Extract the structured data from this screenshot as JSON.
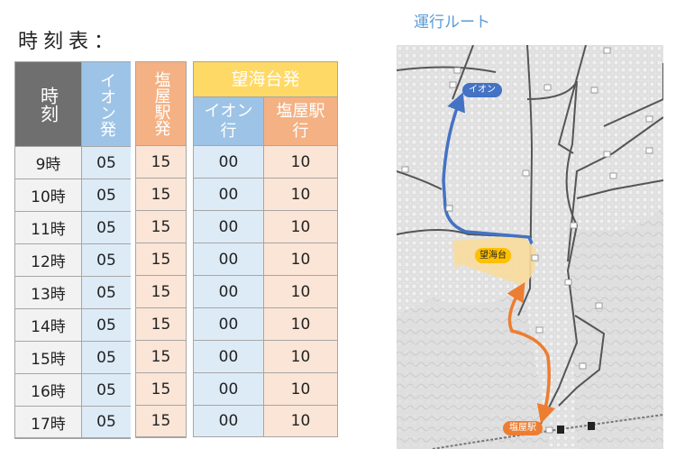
{
  "timetable": {
    "title": "時刻表：",
    "headers": {
      "time": "時刻",
      "aeon_dep": "イオン発",
      "shioya_dep": "塩屋駅発",
      "boukaidai_dep": "望海台発",
      "to_aeon": "イオン行",
      "to_shioya": "塩屋駅行"
    },
    "rows": [
      {
        "time": "9時",
        "aeon": "05",
        "shioya": "15",
        "to_aeon": "00",
        "to_shioya": "10"
      },
      {
        "time": "10時",
        "aeon": "05",
        "shioya": "15",
        "to_aeon": "00",
        "to_shioya": "10"
      },
      {
        "time": "11時",
        "aeon": "05",
        "shioya": "15",
        "to_aeon": "00",
        "to_shioya": "10"
      },
      {
        "time": "12時",
        "aeon": "05",
        "shioya": "15",
        "to_aeon": "00",
        "to_shioya": "10"
      },
      {
        "time": "13時",
        "aeon": "05",
        "shioya": "15",
        "to_aeon": "00",
        "to_shioya": "10"
      },
      {
        "time": "14時",
        "aeon": "05",
        "shioya": "15",
        "to_aeon": "00",
        "to_shioya": "10"
      },
      {
        "time": "15時",
        "aeon": "05",
        "shioya": "15",
        "to_aeon": "00",
        "to_shioya": "10"
      },
      {
        "time": "16時",
        "aeon": "05",
        "shioya": "15",
        "to_aeon": "00",
        "to_shioya": "10"
      },
      {
        "time": "17時",
        "aeon": "05",
        "shioya": "15",
        "to_aeon": "00",
        "to_shioya": "10"
      }
    ]
  },
  "route": {
    "title": "運行ルート",
    "labels": {
      "aeon": "イオン",
      "boukaidai": "望海台",
      "shioya": "塩屋駅"
    }
  },
  "colors": {
    "time_header": "#6f6f6f",
    "blue_header": "#9dc3e6",
    "blue_cell": "#ddebf7",
    "orange_header": "#f4b183",
    "orange_cell": "#fbe5d6",
    "yellow_header": "#ffd966",
    "time_cell": "#f2f2f2",
    "route_blue": "#4472c4",
    "route_orange": "#ed7d31",
    "area_yellow": "#f8dc9c"
  },
  "icons": [
    "bus-stop-icon",
    "train-station-icon"
  ]
}
